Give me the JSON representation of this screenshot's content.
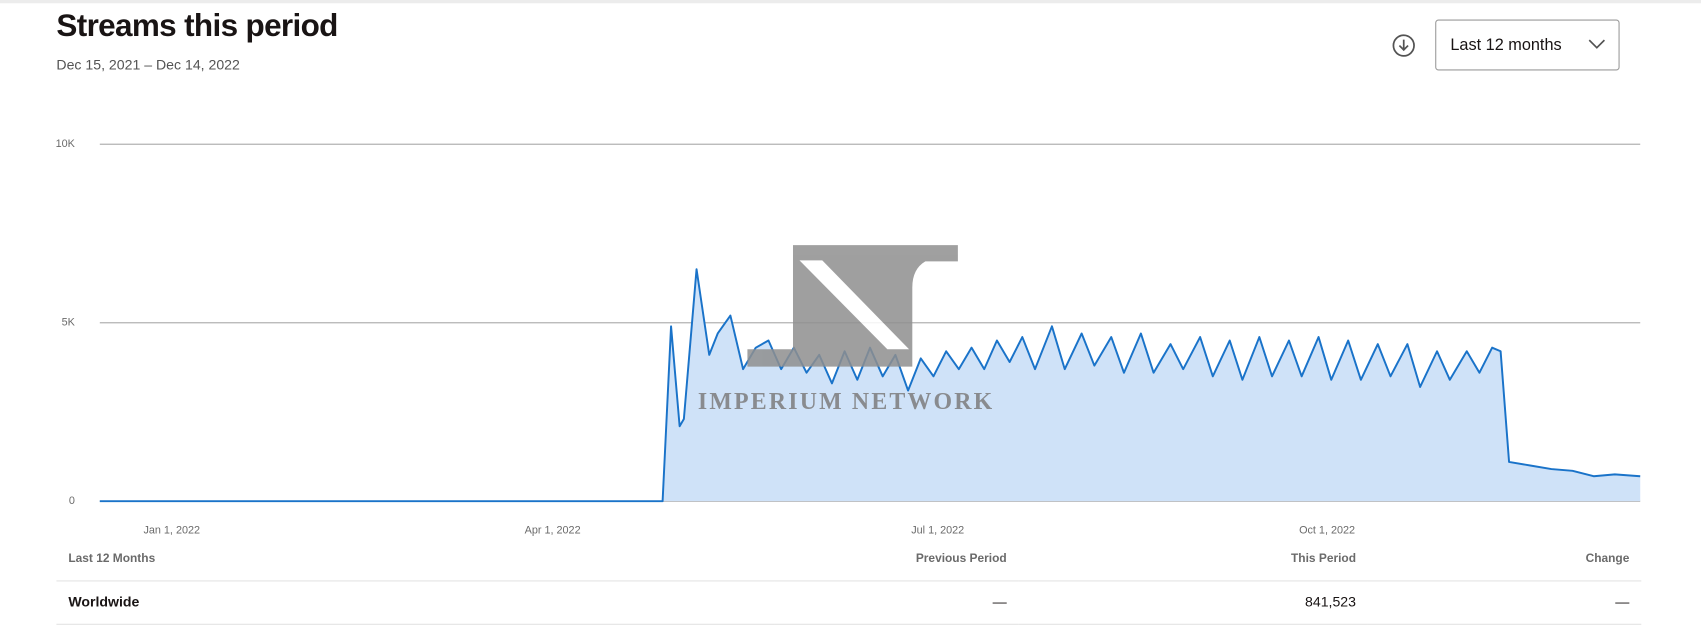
{
  "chart_data": {
    "type": "area",
    "title": "Streams this period",
    "subtitle": "Dec 15, 2021 – Dec 14, 2022",
    "x": [
      "2021-12-15",
      "2022-04-27",
      "2022-04-29",
      "2022-05-01",
      "2022-05-02",
      "2022-05-05",
      "2022-05-08",
      "2022-05-10",
      "2022-05-13",
      "2022-05-16",
      "2022-05-19",
      "2022-05-22",
      "2022-05-25",
      "2022-05-28",
      "2022-05-31",
      "2022-06-03",
      "2022-06-06",
      "2022-06-09",
      "2022-06-12",
      "2022-06-15",
      "2022-06-18",
      "2022-06-21",
      "2022-06-24",
      "2022-06-27",
      "2022-06-30",
      "2022-07-03",
      "2022-07-06",
      "2022-07-09",
      "2022-07-12",
      "2022-07-15",
      "2022-07-18",
      "2022-07-21",
      "2022-07-24",
      "2022-07-28",
      "2022-07-31",
      "2022-08-04",
      "2022-08-07",
      "2022-08-11",
      "2022-08-14",
      "2022-08-18",
      "2022-08-21",
      "2022-08-25",
      "2022-08-28",
      "2022-09-01",
      "2022-09-04",
      "2022-09-08",
      "2022-09-11",
      "2022-09-15",
      "2022-09-18",
      "2022-09-22",
      "2022-09-25",
      "2022-09-29",
      "2022-10-02",
      "2022-10-06",
      "2022-10-09",
      "2022-10-13",
      "2022-10-16",
      "2022-10-20",
      "2022-10-23",
      "2022-10-27",
      "2022-10-30",
      "2022-11-03",
      "2022-11-06",
      "2022-11-09",
      "2022-11-11",
      "2022-11-13",
      "2022-11-18",
      "2022-11-23",
      "2022-11-28",
      "2022-12-03",
      "2022-12-08",
      "2022-12-14"
    ],
    "values": [
      0,
      0,
      4900,
      2100,
      2300,
      6500,
      4100,
      4700,
      5200,
      3700,
      4300,
      4500,
      3700,
      4300,
      3600,
      4100,
      3300,
      4200,
      3400,
      4300,
      3500,
      4100,
      3100,
      4000,
      3500,
      4200,
      3700,
      4300,
      3700,
      4500,
      3900,
      4600,
      3700,
      4900,
      3700,
      4700,
      3800,
      4600,
      3600,
      4700,
      3600,
      4400,
      3700,
      4600,
      3500,
      4500,
      3400,
      4600,
      3500,
      4500,
      3500,
      4600,
      3400,
      4500,
      3400,
      4400,
      3500,
      4400,
      3200,
      4200,
      3400,
      4200,
      3600,
      4300,
      4200,
      1100,
      1000,
      900,
      850,
      700,
      750,
      700
    ],
    "color": "#1a73c9",
    "fill_color": "#cfe2f8",
    "xlim": [
      "2021-12-15",
      "2022-12-14"
    ],
    "xticks": [
      {
        "value": "2022-01-01",
        "label": "Jan 1, 2022"
      },
      {
        "value": "2022-04-01",
        "label": "Apr 1, 2022"
      },
      {
        "value": "2022-07-01",
        "label": "Jul 1, 2022"
      },
      {
        "value": "2022-10-01",
        "label": "Oct 1, 2022"
      }
    ],
    "ylim": [
      0,
      10000
    ],
    "yticks": [
      0,
      {
        "value": 5000,
        "label": "5K"
      },
      {
        "value": 10000,
        "label": "10K"
      }
    ],
    "grid": true,
    "watermark": "IMPERIUM NETWORK"
  },
  "controls": {
    "range": "Last 12 months"
  },
  "table": {
    "header": [
      "Last 12 Months",
      "Previous Period",
      "This Period",
      "Change"
    ],
    "rows": [
      [
        "Worldwide",
        "—",
        "841,523",
        "—"
      ]
    ]
  }
}
